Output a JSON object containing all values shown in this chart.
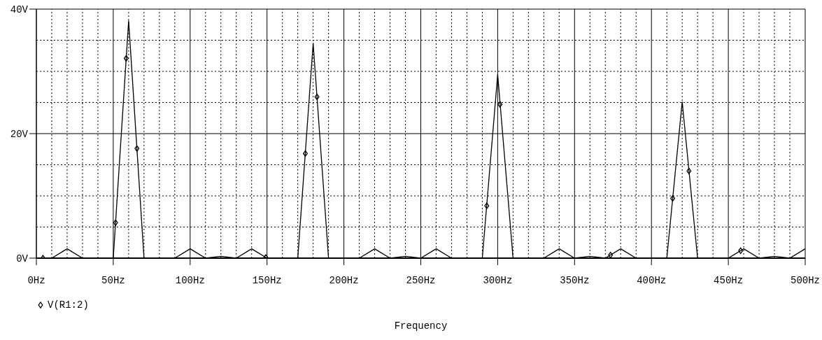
{
  "chart_data": {
    "type": "line",
    "xlabel": "Frequency",
    "xlim": [
      0,
      500
    ],
    "xticks": [
      {
        "value": 0,
        "label": "0Hz"
      },
      {
        "value": 10,
        "label": null
      },
      {
        "value": 20,
        "label": null
      },
      {
        "value": 30,
        "label": null
      },
      {
        "value": 40,
        "label": null
      },
      {
        "value": 50,
        "label": "50Hz"
      },
      {
        "value": 60,
        "label": null
      },
      {
        "value": 70,
        "label": null
      },
      {
        "value": 80,
        "label": null
      },
      {
        "value": 90,
        "label": null
      },
      {
        "value": 100,
        "label": "100Hz"
      },
      {
        "value": 110,
        "label": null
      },
      {
        "value": 120,
        "label": null
      },
      {
        "value": 130,
        "label": null
      },
      {
        "value": 140,
        "label": null
      },
      {
        "value": 150,
        "label": "150Hz"
      },
      {
        "value": 160,
        "label": null
      },
      {
        "value": 170,
        "label": null
      },
      {
        "value": 180,
        "label": null
      },
      {
        "value": 190,
        "label": null
      },
      {
        "value": 200,
        "label": "200Hz"
      },
      {
        "value": 210,
        "label": null
      },
      {
        "value": 220,
        "label": null
      },
      {
        "value": 230,
        "label": null
      },
      {
        "value": 240,
        "label": null
      },
      {
        "value": 250,
        "label": "250Hz"
      },
      {
        "value": 260,
        "label": null
      },
      {
        "value": 270,
        "label": null
      },
      {
        "value": 280,
        "label": null
      },
      {
        "value": 290,
        "label": null
      },
      {
        "value": 300,
        "label": "300Hz"
      },
      {
        "value": 310,
        "label": null
      },
      {
        "value": 320,
        "label": null
      },
      {
        "value": 330,
        "label": null
      },
      {
        "value": 340,
        "label": null
      },
      {
        "value": 350,
        "label": "350Hz"
      },
      {
        "value": 360,
        "label": null
      },
      {
        "value": 370,
        "label": null
      },
      {
        "value": 380,
        "label": null
      },
      {
        "value": 390,
        "label": null
      },
      {
        "value": 400,
        "label": "400Hz"
      },
      {
        "value": 410,
        "label": null
      },
      {
        "value": 420,
        "label": null
      },
      {
        "value": 430,
        "label": null
      },
      {
        "value": 440,
        "label": null
      },
      {
        "value": 450,
        "label": "450Hz"
      },
      {
        "value": 460,
        "label": null
      },
      {
        "value": 470,
        "label": null
      },
      {
        "value": 480,
        "label": null
      },
      {
        "value": 490,
        "label": null
      },
      {
        "value": 500,
        "label": "500Hz"
      }
    ],
    "ylim": [
      0,
      40
    ],
    "yticks": [
      {
        "value": 0,
        "label": "0V"
      },
      {
        "value": 5,
        "label": null
      },
      {
        "value": 10,
        "label": null
      },
      {
        "value": 15,
        "label": null
      },
      {
        "value": 20,
        "label": "20V"
      },
      {
        "value": 25,
        "label": null
      },
      {
        "value": 30,
        "label": null
      },
      {
        "value": 35,
        "label": null
      },
      {
        "value": 40,
        "label": "40V"
      }
    ],
    "grid": true,
    "legend": "bottom left",
    "series": [
      {
        "name": "V(R1:2)",
        "color": "#000000",
        "marker": "none",
        "line_style": "solid",
        "x": [
          0,
          10,
          20,
          30,
          40,
          50,
          60,
          70,
          80,
          90,
          100,
          110,
          120,
          130,
          140,
          150,
          160,
          170,
          180,
          190,
          200,
          210,
          220,
          230,
          240,
          250,
          260,
          270,
          280,
          290,
          300,
          310,
          320,
          330,
          340,
          350,
          360,
          370,
          380,
          390,
          400,
          410,
          420,
          430,
          440,
          450,
          460,
          470,
          480,
          490,
          500
        ],
        "values": [
          0,
          0,
          1.5,
          0,
          0,
          0,
          38.1,
          0,
          0,
          0,
          1.5,
          0,
          0.3,
          0,
          1.5,
          0,
          0,
          0,
          34.5,
          0,
          0,
          0,
          1.5,
          0,
          0.3,
          0,
          1.5,
          0,
          0,
          0,
          29.5,
          0,
          0,
          0,
          1.5,
          0,
          0.3,
          0,
          1.5,
          0,
          0,
          0,
          25.1,
          0,
          0,
          0,
          1.5,
          0,
          0.3,
          0,
          1.5
        ]
      },
      {
        "type": "scatter",
        "color": "#000000",
        "marker": "diamond",
        "x": [
          4.3,
          51.5,
          58.4,
          65.4,
          149.2,
          174.9,
          182.5,
          292.9,
          301.5,
          373.4,
          413.8,
          424.4,
          458
        ],
        "values": [
          0,
          5.7,
          32.1,
          17.6,
          0.1,
          16.8,
          25.9,
          8.4,
          24.7,
          0.5,
          9.6,
          14,
          1.2
        ]
      }
    ]
  }
}
